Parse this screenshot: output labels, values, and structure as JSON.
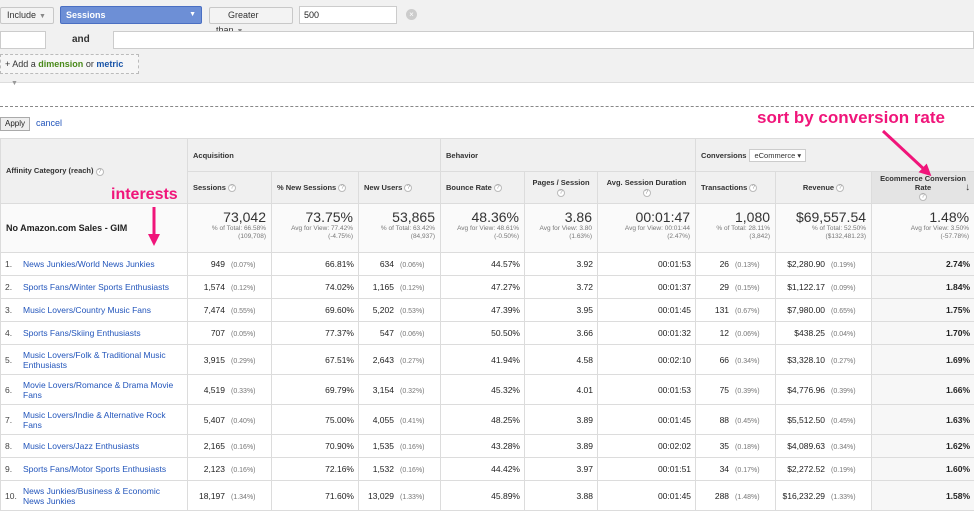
{
  "filter": {
    "include_label": "Include",
    "metric_select": "Sessions",
    "operator": "Greater than",
    "value": "500",
    "and_label": "and",
    "add_prefix": "+ Add a",
    "add_dimension": "dimension",
    "add_or": "or",
    "add_metric": "metric"
  },
  "actions": {
    "apply": "Apply",
    "cancel": "cancel"
  },
  "annotations": {
    "sort": "sort by conversion rate",
    "interests": "interests"
  },
  "table": {
    "groups": {
      "acquisition": "Acquisition",
      "behavior": "Behavior",
      "conversions": "Conversions",
      "conversions_select": "eCommerce"
    },
    "columns": {
      "dimension": "Affinity Category (reach)",
      "sessions": "Sessions",
      "new_sessions": "% New Sessions",
      "new_users": "New Users",
      "bounce": "Bounce Rate",
      "pages": "Pages / Session",
      "duration": "Avg. Session Duration",
      "transactions": "Transactions",
      "revenue": "Revenue",
      "ecr": "Ecommerce Conversion Rate",
      "sort_arrow": "↓"
    },
    "totals": {
      "label": "No Amazon.com Sales - GIM",
      "sessions": {
        "main": "73,042",
        "sub1": "% of Total: 66.58%",
        "sub2": "(109,708)"
      },
      "new_sessions": {
        "main": "73.75%",
        "sub1": "Avg for View: 77.42%",
        "sub2": "(-4.75%)"
      },
      "new_users": {
        "main": "53,865",
        "sub1": "% of Total: 63.42%",
        "sub2": "(84,937)"
      },
      "bounce": {
        "main": "48.36%",
        "sub1": "Avg for View: 48.61%",
        "sub2": "(-0.50%)"
      },
      "pages": {
        "main": "3.86",
        "sub1": "Avg for View: 3.80",
        "sub2": "(1.63%)"
      },
      "duration": {
        "main": "00:01:47",
        "sub1": "Avg for View: 00:01:44",
        "sub2": "(2.47%)"
      },
      "transactions": {
        "main": "1,080",
        "sub1": "% of Total: 28.11%",
        "sub2": "(3,842)"
      },
      "revenue": {
        "main": "$69,557.54",
        "sub1": "% of Total: 52.50%",
        "sub2": "($132,481.23)"
      },
      "ecr": {
        "main": "1.48%",
        "sub1": "Avg for View: 3.50%",
        "sub2": "(-57.78%)"
      }
    },
    "rows": [
      {
        "n": "1.",
        "name": "News Junkies/World News Junkies",
        "sessions": "949",
        "sessions_pct": "(0.07%)",
        "new_sessions": "66.81%",
        "new_users": "634",
        "new_users_pct": "(0.06%)",
        "bounce": "44.57%",
        "pages": "3.92",
        "duration": "00:01:53",
        "transactions": "26",
        "transactions_pct": "(0.13%)",
        "revenue": "$2,280.90",
        "revenue_pct": "(0.19%)",
        "ecr": "2.74%"
      },
      {
        "n": "2.",
        "name": "Sports Fans/Winter Sports Enthusiasts",
        "sessions": "1,574",
        "sessions_pct": "(0.12%)",
        "new_sessions": "74.02%",
        "new_users": "1,165",
        "new_users_pct": "(0.12%)",
        "bounce": "47.27%",
        "pages": "3.72",
        "duration": "00:01:37",
        "transactions": "29",
        "transactions_pct": "(0.15%)",
        "revenue": "$1,122.17",
        "revenue_pct": "(0.09%)",
        "ecr": "1.84%"
      },
      {
        "n": "3.",
        "name": "Music Lovers/Country Music Fans",
        "sessions": "7,474",
        "sessions_pct": "(0.55%)",
        "new_sessions": "69.60%",
        "new_users": "5,202",
        "new_users_pct": "(0.53%)",
        "bounce": "47.39%",
        "pages": "3.95",
        "duration": "00:01:45",
        "transactions": "131",
        "transactions_pct": "(0.67%)",
        "revenue": "$7,980.00",
        "revenue_pct": "(0.65%)",
        "ecr": "1.75%"
      },
      {
        "n": "4.",
        "name": "Sports Fans/Skiing Enthusiasts",
        "sessions": "707",
        "sessions_pct": "(0.05%)",
        "new_sessions": "77.37%",
        "new_users": "547",
        "new_users_pct": "(0.06%)",
        "bounce": "50.50%",
        "pages": "3.66",
        "duration": "00:01:32",
        "transactions": "12",
        "transactions_pct": "(0.06%)",
        "revenue": "$438.25",
        "revenue_pct": "(0.04%)",
        "ecr": "1.70%"
      },
      {
        "n": "5.",
        "name": "Music Lovers/Folk & Traditional Music Enthusiasts",
        "sessions": "3,915",
        "sessions_pct": "(0.29%)",
        "new_sessions": "67.51%",
        "new_users": "2,643",
        "new_users_pct": "(0.27%)",
        "bounce": "41.94%",
        "pages": "4.58",
        "duration": "00:02:10",
        "transactions": "66",
        "transactions_pct": "(0.34%)",
        "revenue": "$3,328.10",
        "revenue_pct": "(0.27%)",
        "ecr": "1.69%"
      },
      {
        "n": "6.",
        "name": "Movie Lovers/Romance & Drama Movie Fans",
        "sessions": "4,519",
        "sessions_pct": "(0.33%)",
        "new_sessions": "69.79%",
        "new_users": "3,154",
        "new_users_pct": "(0.32%)",
        "bounce": "45.32%",
        "pages": "4.01",
        "duration": "00:01:53",
        "transactions": "75",
        "transactions_pct": "(0.39%)",
        "revenue": "$4,776.96",
        "revenue_pct": "(0.39%)",
        "ecr": "1.66%"
      },
      {
        "n": "7.",
        "name": "Music Lovers/Indie & Alternative Rock Fans",
        "sessions": "5,407",
        "sessions_pct": "(0.40%)",
        "new_sessions": "75.00%",
        "new_users": "4,055",
        "new_users_pct": "(0.41%)",
        "bounce": "48.25%",
        "pages": "3.89",
        "duration": "00:01:45",
        "transactions": "88",
        "transactions_pct": "(0.45%)",
        "revenue": "$5,512.50",
        "revenue_pct": "(0.45%)",
        "ecr": "1.63%"
      },
      {
        "n": "8.",
        "name": "Music Lovers/Jazz Enthusiasts",
        "sessions": "2,165",
        "sessions_pct": "(0.16%)",
        "new_sessions": "70.90%",
        "new_users": "1,535",
        "new_users_pct": "(0.16%)",
        "bounce": "43.28%",
        "pages": "3.89",
        "duration": "00:02:02",
        "transactions": "35",
        "transactions_pct": "(0.18%)",
        "revenue": "$4,089.63",
        "revenue_pct": "(0.34%)",
        "ecr": "1.62%"
      },
      {
        "n": "9.",
        "name": "Sports Fans/Motor Sports Enthusiasts",
        "sessions": "2,123",
        "sessions_pct": "(0.16%)",
        "new_sessions": "72.16%",
        "new_users": "1,532",
        "new_users_pct": "(0.16%)",
        "bounce": "44.42%",
        "pages": "3.97",
        "duration": "00:01:51",
        "transactions": "34",
        "transactions_pct": "(0.17%)",
        "revenue": "$2,272.52",
        "revenue_pct": "(0.19%)",
        "ecr": "1.60%"
      },
      {
        "n": "10.",
        "name": "News Junkies/Business & Economic News Junkies",
        "sessions": "18,197",
        "sessions_pct": "(1.34%)",
        "new_sessions": "71.60%",
        "new_users": "13,029",
        "new_users_pct": "(1.33%)",
        "bounce": "45.89%",
        "pages": "3.88",
        "duration": "00:01:45",
        "transactions": "288",
        "transactions_pct": "(1.48%)",
        "revenue": "$16,232.29",
        "revenue_pct": "(1.33%)",
        "ecr": "1.58%"
      }
    ]
  },
  "colors": {
    "accent": "#f0157a",
    "link": "#2255bb",
    "select_blue": "#6d8fd6"
  }
}
